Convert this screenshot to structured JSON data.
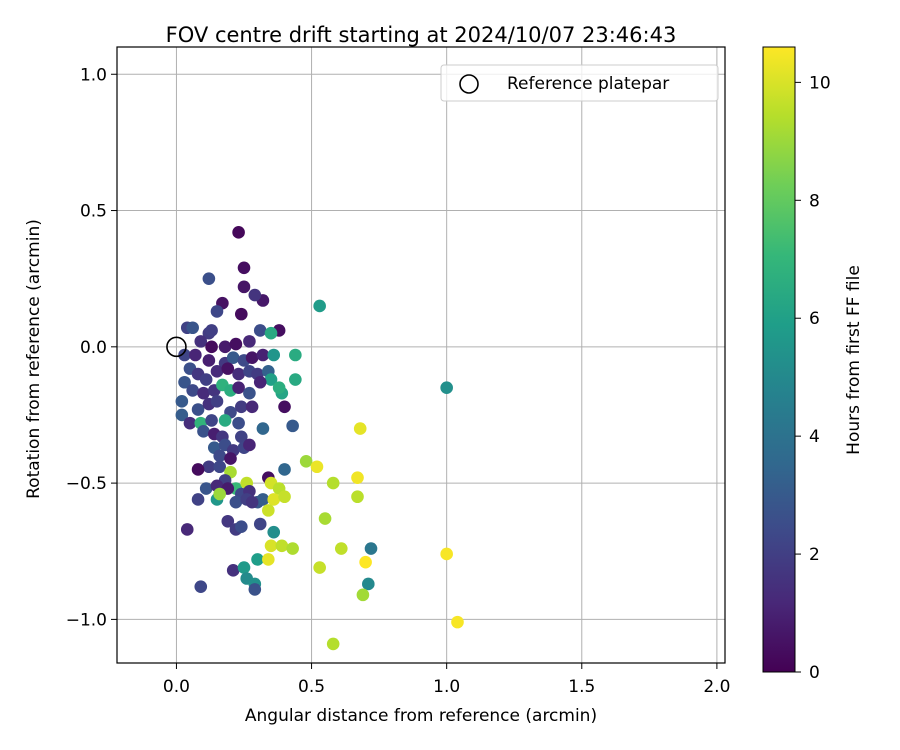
{
  "chart_data": {
    "type": "scatter",
    "title": "FOV centre drift starting at 2024/10/07 23:46:43",
    "xlabel": "Angular distance from reference (arcmin)",
    "ylabel": "Rotation from reference (arcmin)",
    "xlim": [
      -0.22,
      2.03
    ],
    "ylim": [
      -1.16,
      1.1
    ],
    "x_ticks": [
      0.0,
      0.5,
      1.0,
      1.5,
      2.0
    ],
    "x_tick_labels": [
      "0.0",
      "0.5",
      "1.0",
      "1.5",
      "2.0"
    ],
    "y_ticks": [
      1.0,
      0.5,
      0.0,
      -0.5,
      -1.0
    ],
    "y_tick_labels": [
      "1.0",
      "0.5",
      "0.0",
      "−0.5",
      "−1.0"
    ],
    "grid": true,
    "legend": {
      "placement": "top-right",
      "entries": [
        "Reference platepar"
      ]
    },
    "reference_point": {
      "name": "Reference platepar",
      "x": 0.0,
      "y": 0.0
    },
    "colorbar": {
      "label": "Hours from first FF file",
      "range": [
        0,
        10.6
      ],
      "ticks": [
        0,
        2,
        4,
        6,
        8,
        10
      ],
      "tick_labels": [
        "0",
        "2",
        "4",
        "6",
        "8",
        "10"
      ],
      "colormap": "viridis"
    },
    "points": [
      {
        "x": 0.23,
        "y": 0.42,
        "hours": 0.2
      },
      {
        "x": 0.25,
        "y": 0.29,
        "hours": 0.4
      },
      {
        "x": 0.25,
        "y": 0.22,
        "hours": 0.6
      },
      {
        "x": 0.17,
        "y": 0.16,
        "hours": 0.5
      },
      {
        "x": 0.32,
        "y": 0.17,
        "hours": 0.7
      },
      {
        "x": 0.24,
        "y": 0.12,
        "hours": 0.3
      },
      {
        "x": 0.29,
        "y": 0.19,
        "hours": 1.6
      },
      {
        "x": 0.12,
        "y": 0.25,
        "hours": 2.6
      },
      {
        "x": 0.15,
        "y": 0.13,
        "hours": 2.3
      },
      {
        "x": 0.12,
        "y": 0.05,
        "hours": 1.9
      },
      {
        "x": 0.04,
        "y": 0.07,
        "hours": 2.1
      },
      {
        "x": 0.06,
        "y": 0.07,
        "hours": 2.8
      },
      {
        "x": 0.09,
        "y": 0.02,
        "hours": 1.5
      },
      {
        "x": 0.13,
        "y": 0.06,
        "hours": 2.0
      },
      {
        "x": 0.18,
        "y": 0.0,
        "hours": 0.8
      },
      {
        "x": 0.22,
        "y": 0.01,
        "hours": 0.4
      },
      {
        "x": 0.27,
        "y": 0.02,
        "hours": 1.2
      },
      {
        "x": 0.31,
        "y": 0.06,
        "hours": 2.5
      },
      {
        "x": 0.38,
        "y": 0.06,
        "hours": 0.4
      },
      {
        "x": 0.53,
        "y": 0.15,
        "hours": 5.8
      },
      {
        "x": 0.35,
        "y": 0.05,
        "hours": 6.4
      },
      {
        "x": 0.13,
        "y": 0.0,
        "hours": 0.3
      },
      {
        "x": 0.03,
        "y": -0.03,
        "hours": 2.2
      },
      {
        "x": 0.07,
        "y": -0.03,
        "hours": 1.1
      },
      {
        "x": 0.12,
        "y": -0.05,
        "hours": 0.9
      },
      {
        "x": 0.18,
        "y": -0.06,
        "hours": 1.8
      },
      {
        "x": 0.21,
        "y": -0.04,
        "hours": 3.0
      },
      {
        "x": 0.25,
        "y": -0.05,
        "hours": 2.4
      },
      {
        "x": 0.28,
        "y": -0.04,
        "hours": 0.6
      },
      {
        "x": 0.32,
        "y": -0.03,
        "hours": 1.0
      },
      {
        "x": 0.36,
        "y": -0.03,
        "hours": 5.5
      },
      {
        "x": 0.44,
        "y": -0.03,
        "hours": 6.5
      },
      {
        "x": 0.05,
        "y": -0.08,
        "hours": 2.6
      },
      {
        "x": 0.08,
        "y": -0.1,
        "hours": 1.7
      },
      {
        "x": 0.11,
        "y": -0.12,
        "hours": 2.0
      },
      {
        "x": 0.15,
        "y": -0.09,
        "hours": 1.3
      },
      {
        "x": 0.19,
        "y": -0.08,
        "hours": 0.5
      },
      {
        "x": 0.23,
        "y": -0.1,
        "hours": 1.4
      },
      {
        "x": 0.27,
        "y": -0.09,
        "hours": 2.2
      },
      {
        "x": 0.3,
        "y": -0.1,
        "hours": 1.9
      },
      {
        "x": 0.34,
        "y": -0.09,
        "hours": 3.3
      },
      {
        "x": 0.35,
        "y": -0.12,
        "hours": 6.0
      },
      {
        "x": 0.44,
        "y": -0.12,
        "hours": 6.4
      },
      {
        "x": 0.31,
        "y": -0.13,
        "hours": 1.1
      },
      {
        "x": 0.03,
        "y": -0.13,
        "hours": 2.8
      },
      {
        "x": 0.06,
        "y": -0.16,
        "hours": 2.4
      },
      {
        "x": 0.1,
        "y": -0.17,
        "hours": 1.3
      },
      {
        "x": 0.14,
        "y": -0.16,
        "hours": 1.6
      },
      {
        "x": 0.17,
        "y": -0.14,
        "hours": 6.8
      },
      {
        "x": 0.2,
        "y": -0.16,
        "hours": 6.6
      },
      {
        "x": 0.23,
        "y": -0.15,
        "hours": 1.0
      },
      {
        "x": 0.27,
        "y": -0.17,
        "hours": 2.7
      },
      {
        "x": 0.39,
        "y": -0.17,
        "hours": 6.2
      },
      {
        "x": 0.38,
        "y": -0.15,
        "hours": 6.6
      },
      {
        "x": 0.02,
        "y": -0.2,
        "hours": 3.0
      },
      {
        "x": 0.08,
        "y": -0.23,
        "hours": 2.6
      },
      {
        "x": 0.12,
        "y": -0.21,
        "hours": 1.5
      },
      {
        "x": 0.15,
        "y": -0.2,
        "hours": 2.0
      },
      {
        "x": 0.2,
        "y": -0.24,
        "hours": 2.4
      },
      {
        "x": 0.24,
        "y": -0.22,
        "hours": 1.9
      },
      {
        "x": 0.28,
        "y": -0.22,
        "hours": 1.2
      },
      {
        "x": 0.4,
        "y": -0.22,
        "hours": 0.4
      },
      {
        "x": 0.02,
        "y": -0.25,
        "hours": 3.1
      },
      {
        "x": 0.05,
        "y": -0.28,
        "hours": 1.4
      },
      {
        "x": 0.09,
        "y": -0.28,
        "hours": 6.9
      },
      {
        "x": 0.13,
        "y": -0.27,
        "hours": 2.2
      },
      {
        "x": 0.18,
        "y": -0.27,
        "hours": 6.5
      },
      {
        "x": 0.23,
        "y": -0.28,
        "hours": 2.5
      },
      {
        "x": 0.32,
        "y": -0.3,
        "hours": 3.5
      },
      {
        "x": 0.43,
        "y": -0.29,
        "hours": 3.0
      },
      {
        "x": 0.1,
        "y": -0.31,
        "hours": 2.7
      },
      {
        "x": 0.14,
        "y": -0.32,
        "hours": 0.9
      },
      {
        "x": 0.17,
        "y": -0.33,
        "hours": 1.7
      },
      {
        "x": 0.24,
        "y": -0.33,
        "hours": 2.1
      },
      {
        "x": 0.14,
        "y": -0.37,
        "hours": 3.0
      },
      {
        "x": 0.18,
        "y": -0.36,
        "hours": 2.5
      },
      {
        "x": 0.21,
        "y": -0.38,
        "hours": 1.8
      },
      {
        "x": 0.25,
        "y": -0.37,
        "hours": 2.2
      },
      {
        "x": 0.27,
        "y": -0.36,
        "hours": 1.1
      },
      {
        "x": 0.16,
        "y": -0.4,
        "hours": 2.4
      },
      {
        "x": 0.2,
        "y": -0.41,
        "hours": 0.6
      },
      {
        "x": 0.12,
        "y": -0.44,
        "hours": 1.9
      },
      {
        "x": 0.16,
        "y": -0.44,
        "hours": 2.3
      },
      {
        "x": 0.08,
        "y": -0.45,
        "hours": 0.3
      },
      {
        "x": 0.2,
        "y": -0.46,
        "hours": 9.2
      },
      {
        "x": 0.34,
        "y": -0.48,
        "hours": 0.4
      },
      {
        "x": 0.4,
        "y": -0.45,
        "hours": 3.5
      },
      {
        "x": 0.48,
        "y": -0.42,
        "hours": 9.0
      },
      {
        "x": 0.52,
        "y": -0.44,
        "hours": 10.3
      },
      {
        "x": 0.58,
        "y": -0.5,
        "hours": 9.4
      },
      {
        "x": 0.67,
        "y": -0.48,
        "hours": 10.4
      },
      {
        "x": 0.68,
        "y": -0.3,
        "hours": 10.2
      },
      {
        "x": 1.0,
        "y": -0.15,
        "hours": 5.3
      },
      {
        "x": 0.18,
        "y": -0.49,
        "hours": 2.0
      },
      {
        "x": 0.22,
        "y": -0.52,
        "hours": 7.1
      },
      {
        "x": 0.26,
        "y": -0.5,
        "hours": 9.6
      },
      {
        "x": 0.11,
        "y": -0.52,
        "hours": 2.8
      },
      {
        "x": 0.15,
        "y": -0.51,
        "hours": 1.2
      },
      {
        "x": 0.19,
        "y": -0.52,
        "hours": 0.8
      },
      {
        "x": 0.24,
        "y": -0.54,
        "hours": 2.3
      },
      {
        "x": 0.27,
        "y": -0.53,
        "hours": 1.5
      },
      {
        "x": 0.35,
        "y": -0.5,
        "hours": 9.9
      },
      {
        "x": 0.38,
        "y": -0.52,
        "hours": 9.5
      },
      {
        "x": 0.08,
        "y": -0.56,
        "hours": 2.1
      },
      {
        "x": 0.15,
        "y": -0.56,
        "hours": 5.6
      },
      {
        "x": 0.16,
        "y": -0.54,
        "hours": 9.0
      },
      {
        "x": 0.22,
        "y": -0.57,
        "hours": 2.6
      },
      {
        "x": 0.26,
        "y": -0.56,
        "hours": 2.0
      },
      {
        "x": 0.3,
        "y": -0.57,
        "hours": 2.9
      },
      {
        "x": 0.32,
        "y": -0.56,
        "hours": 3.1
      },
      {
        "x": 0.36,
        "y": -0.56,
        "hours": 10.1
      },
      {
        "x": 0.4,
        "y": -0.55,
        "hours": 9.7
      },
      {
        "x": 0.34,
        "y": -0.6,
        "hours": 9.8
      },
      {
        "x": 0.67,
        "y": -0.55,
        "hours": 9.5
      },
      {
        "x": 0.28,
        "y": -0.57,
        "hours": 1.6
      },
      {
        "x": 0.19,
        "y": -0.64,
        "hours": 1.7
      },
      {
        "x": 0.22,
        "y": -0.67,
        "hours": 1.9
      },
      {
        "x": 0.24,
        "y": -0.66,
        "hours": 2.5
      },
      {
        "x": 0.31,
        "y": -0.65,
        "hours": 2.2
      },
      {
        "x": 0.04,
        "y": -0.67,
        "hours": 1.2
      },
      {
        "x": 0.36,
        "y": -0.68,
        "hours": 5.2
      },
      {
        "x": 0.55,
        "y": -0.63,
        "hours": 9.2
      },
      {
        "x": 0.35,
        "y": -0.73,
        "hours": 10.0
      },
      {
        "x": 0.39,
        "y": -0.73,
        "hours": 9.6
      },
      {
        "x": 0.43,
        "y": -0.74,
        "hours": 9.3
      },
      {
        "x": 0.61,
        "y": -0.74,
        "hours": 9.6
      },
      {
        "x": 0.72,
        "y": -0.74,
        "hours": 4.2
      },
      {
        "x": 0.3,
        "y": -0.78,
        "hours": 5.9
      },
      {
        "x": 0.34,
        "y": -0.78,
        "hours": 10.2
      },
      {
        "x": 0.7,
        "y": -0.79,
        "hours": 10.6
      },
      {
        "x": 1.0,
        "y": -0.76,
        "hours": 10.5
      },
      {
        "x": 0.53,
        "y": -0.81,
        "hours": 9.7
      },
      {
        "x": 0.21,
        "y": -0.82,
        "hours": 1.5
      },
      {
        "x": 0.25,
        "y": -0.81,
        "hours": 5.7
      },
      {
        "x": 0.26,
        "y": -0.85,
        "hours": 5.1
      },
      {
        "x": 0.09,
        "y": -0.88,
        "hours": 2.3
      },
      {
        "x": 0.29,
        "y": -0.87,
        "hours": 5.3
      },
      {
        "x": 0.29,
        "y": -0.89,
        "hours": 2.7
      },
      {
        "x": 0.71,
        "y": -0.87,
        "hours": 5.0
      },
      {
        "x": 0.69,
        "y": -0.91,
        "hours": 9.1
      },
      {
        "x": 1.04,
        "y": -1.01,
        "hours": 10.5
      },
      {
        "x": 0.58,
        "y": -1.09,
        "hours": 9.4
      }
    ]
  }
}
